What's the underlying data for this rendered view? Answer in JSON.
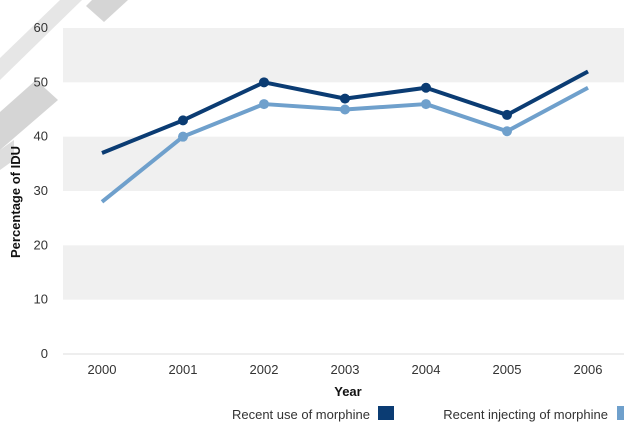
{
  "colors": {
    "band": "#f0f0f0",
    "series1": "#0b3c73",
    "series2": "#6fa0cc",
    "decor": "#d5d5d5"
  },
  "chart_data": {
    "type": "line",
    "title": "",
    "xlabel": "Year",
    "ylabel": "Percentage of IDU",
    "x": [
      "2000",
      "2001",
      "2002",
      "2003",
      "2004",
      "2005",
      "2006"
    ],
    "ylim": [
      0,
      60
    ],
    "yticks": [
      "0",
      "10",
      "20",
      "30",
      "40",
      "50",
      "60"
    ],
    "grid": "alternating horizontal bands",
    "legend_position": "bottom",
    "series": [
      {
        "name": "Recent use of morphine",
        "values": [
          37,
          43,
          50,
          47,
          49,
          44,
          52
        ]
      },
      {
        "name": "Recent injecting of morphine",
        "values": [
          28,
          40,
          46,
          45,
          46,
          41,
          49
        ]
      }
    ]
  }
}
